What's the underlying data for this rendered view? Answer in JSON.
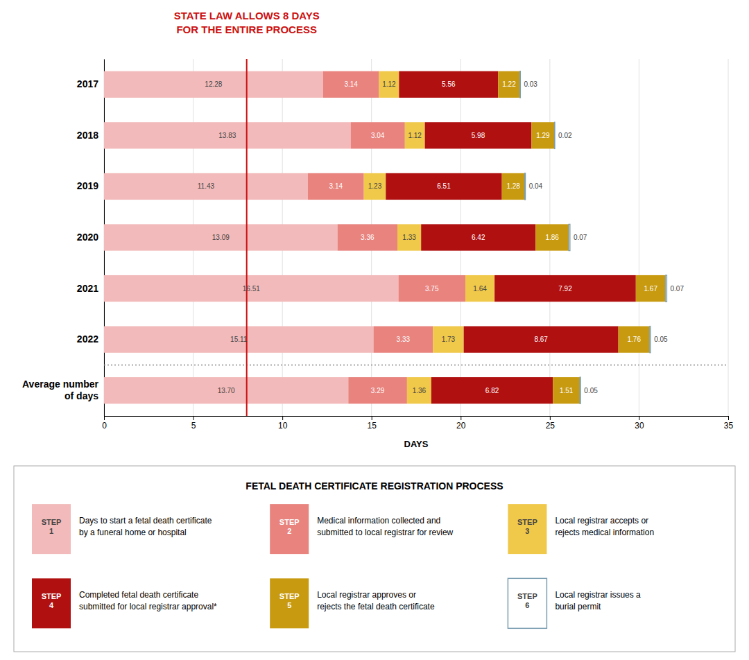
{
  "chart_data": {
    "type": "bar",
    "orientation": "horizontal",
    "stacked": true,
    "data_labels": true,
    "grid": true,
    "title": "STATE LAW ALLOWS 8 DAYS\nFOR THE ENTIRE PROCESS",
    "title_color": "#cc1111",
    "xlabel": "DAYS",
    "xlim": [
      0,
      35
    ],
    "xticks": [
      0,
      5,
      10,
      15,
      20,
      25,
      30,
      35
    ],
    "categories": [
      "2017",
      "2018",
      "2019",
      "2020",
      "2021",
      "2022",
      "Average number\nof days"
    ],
    "legend_title": "FETAL DEATH CERTIFICATE REGISTRATION PROCESS",
    "annotations": [
      {
        "type": "vline",
        "x": 8,
        "color": "#cc1111"
      }
    ],
    "series": [
      {
        "name": "Days to start a fetal death certificate\nby a funeral home or hospital",
        "step": "STEP\n1",
        "color": "#f2baba",
        "values": [
          12.28,
          13.83,
          11.43,
          13.09,
          16.51,
          15.11,
          13.7
        ],
        "value_labels": [
          "12.28",
          "13.83",
          "11.43",
          "13.09",
          "16.51",
          "15.11",
          "13.70"
        ]
      },
      {
        "name": "Medical information collected and\nsubmitted to local registrar for review",
        "step": "STEP\n2",
        "color": "#e8837e",
        "values": [
          3.14,
          3.04,
          3.14,
          3.36,
          3.75,
          3.33,
          3.29
        ],
        "value_labels": [
          "3.14",
          "3.04",
          "3.14",
          "3.36",
          "3.75",
          "3.33",
          "3.29"
        ]
      },
      {
        "name": "Local registrar accepts or\nrejects medical information",
        "step": "STEP\n3",
        "color": "#f0c84a",
        "values": [
          1.12,
          1.12,
          1.23,
          1.33,
          1.64,
          1.73,
          1.36
        ],
        "value_labels": [
          "1.12",
          "1.12",
          "1.23",
          "1.33",
          "1.64",
          "1.73",
          "1.36"
        ]
      },
      {
        "name": "Completed fetal death certificate\nsubmitted for local registrar approval*",
        "step": "STEP\n4",
        "color": "#b01010",
        "values": [
          5.56,
          5.98,
          6.51,
          6.42,
          7.92,
          8.67,
          6.82
        ],
        "value_labels": [
          "5.56",
          "5.98",
          "6.51",
          "6.42",
          "7.92",
          "8.67",
          "6.82"
        ]
      },
      {
        "name": "Local registrar approves or\nrejects the fetal death certificate",
        "step": "STEP\n5",
        "color": "#c89a10",
        "values": [
          1.22,
          1.29,
          1.28,
          1.86,
          1.67,
          1.76,
          1.51
        ],
        "value_labels": [
          "1.22",
          "1.29",
          "1.28",
          "1.86",
          "1.67",
          "1.76",
          "1.51"
        ]
      },
      {
        "name": "Local registrar issues a\nburial permit",
        "step": "STEP\n6",
        "color": "#ffffff",
        "edge_color": "#7a9db0",
        "values": [
          0.03,
          0.02,
          0.04,
          0.07,
          0.07,
          0.05,
          0.05
        ],
        "value_labels": [
          "0.03",
          "0.02",
          "0.04",
          "0.07",
          "0.07",
          "0.05",
          "0.05"
        ]
      }
    ]
  }
}
